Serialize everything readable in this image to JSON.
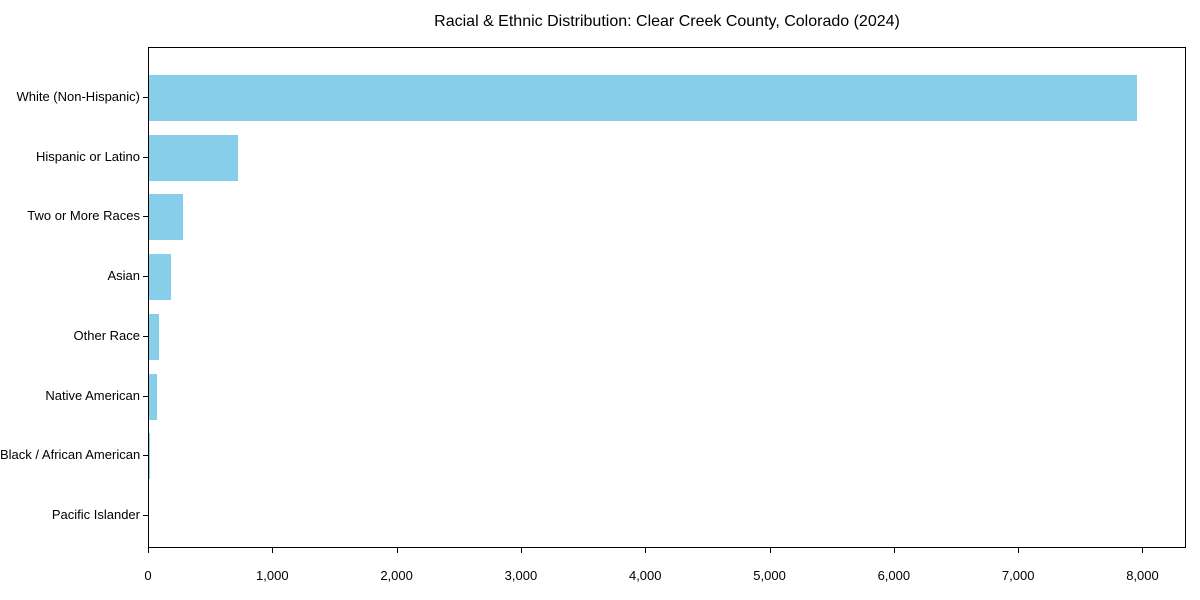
{
  "chart_data": {
    "type": "bar",
    "orientation": "horizontal",
    "title": "Racial & Ethnic Distribution: Clear Creek County, Colorado (2024)",
    "xlabel": "",
    "ylabel": "",
    "categories": [
      "White (Non-Hispanic)",
      "Hispanic or Latino",
      "Two or More Races",
      "Asian",
      "Other Race",
      "Native American",
      "Black / African American",
      "Pacific Islander"
    ],
    "values": [
      7950,
      715,
      270,
      175,
      80,
      65,
      10,
      0
    ],
    "xlim": [
      0,
      8350
    ],
    "x_ticks": [
      0,
      1000,
      2000,
      3000,
      4000,
      5000,
      6000,
      7000,
      8000
    ],
    "x_tick_labels": [
      "0",
      "1,000",
      "2,000",
      "3,000",
      "4,000",
      "5,000",
      "6,000",
      "7,000",
      "8,000"
    ],
    "grid": false,
    "legend": null,
    "bar_color": "#87CEEB",
    "axis_color": "#000000",
    "background_color": "#ffffff"
  }
}
